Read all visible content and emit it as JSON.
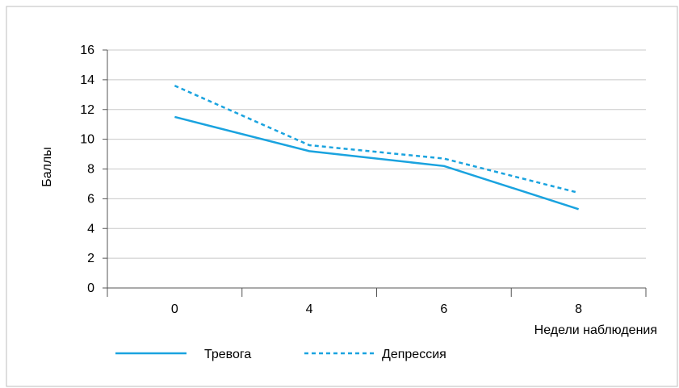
{
  "chart_data": {
    "type": "line",
    "title": "",
    "xlabel": "Недели наблюдения",
    "ylabel": "Баллы",
    "categories": [
      "0",
      "4",
      "6",
      "8"
    ],
    "ylim": [
      0,
      16
    ],
    "yticks": [
      0,
      2,
      4,
      6,
      8,
      10,
      12,
      14,
      16
    ],
    "grid": true,
    "legend": "bottom-left",
    "series": [
      {
        "name": "Тревога",
        "values": [
          11.5,
          9.2,
          8.2,
          5.3
        ],
        "style": "solid",
        "color": "#1aa3df"
      },
      {
        "name": "Депрессия",
        "values": [
          13.6,
          9.6,
          8.7,
          6.4
        ],
        "style": "dashed",
        "color": "#1aa3df"
      }
    ]
  }
}
